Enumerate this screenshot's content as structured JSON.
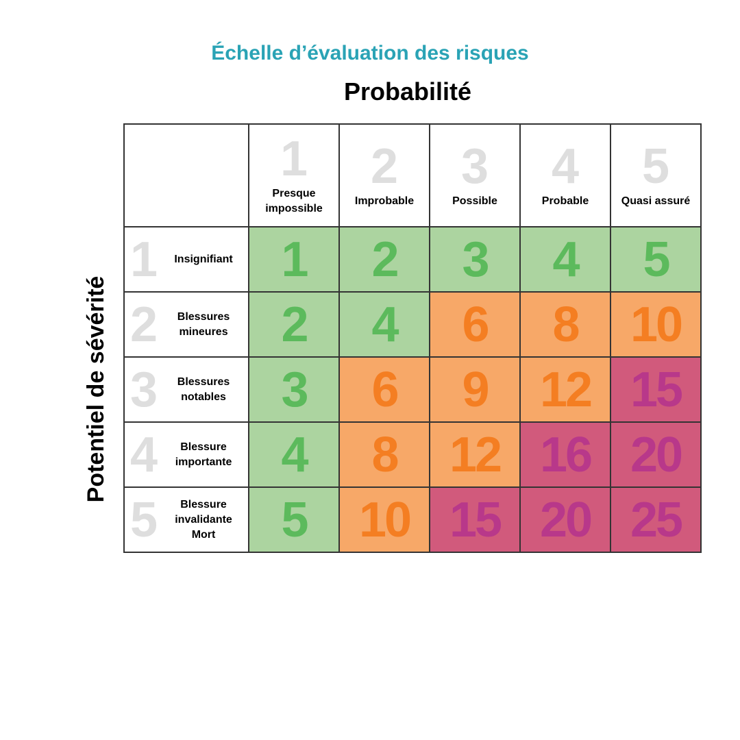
{
  "title": "Échelle d’évaluation des risques",
  "x_axis_label": "Probabilité",
  "y_axis_label": "Potentiel de sévérité",
  "columns": [
    {
      "level": "1",
      "label": "Presque impossible"
    },
    {
      "level": "2",
      "label": "Improbable"
    },
    {
      "level": "3",
      "label": "Possible"
    },
    {
      "level": "4",
      "label": "Probable"
    },
    {
      "level": "5",
      "label": "Quasi assuré"
    }
  ],
  "rows": [
    {
      "level": "1",
      "label": "Insignifiant",
      "values": [
        1,
        2,
        3,
        4,
        5
      ],
      "zones": [
        "low",
        "low",
        "low",
        "low",
        "low"
      ]
    },
    {
      "level": "2",
      "label": "Blessures mineures",
      "values": [
        2,
        4,
        6,
        8,
        10
      ],
      "zones": [
        "low",
        "low",
        "medium",
        "medium",
        "medium"
      ]
    },
    {
      "level": "3",
      "label": "Blessures notables",
      "values": [
        3,
        6,
        9,
        12,
        15
      ],
      "zones": [
        "low",
        "medium",
        "medium",
        "medium",
        "high"
      ]
    },
    {
      "level": "4",
      "label": "Blessure importante",
      "values": [
        4,
        8,
        12,
        16,
        20
      ],
      "zones": [
        "low",
        "medium",
        "medium",
        "high",
        "high"
      ]
    },
    {
      "level": "5",
      "label": "Blessure invalidante Mort",
      "values": [
        5,
        10,
        15,
        20,
        25
      ],
      "zones": [
        "low",
        "medium",
        "high",
        "high",
        "high"
      ]
    }
  ],
  "colors": {
    "title": "#2aa3b5",
    "low": {
      "background": "#acd4a0",
      "text": "#5cba5c"
    },
    "medium": {
      "background": "#f7a868",
      "text": "#f47e22"
    },
    "high": {
      "background": "#d15a7c",
      "text": "#b8388a"
    }
  }
}
